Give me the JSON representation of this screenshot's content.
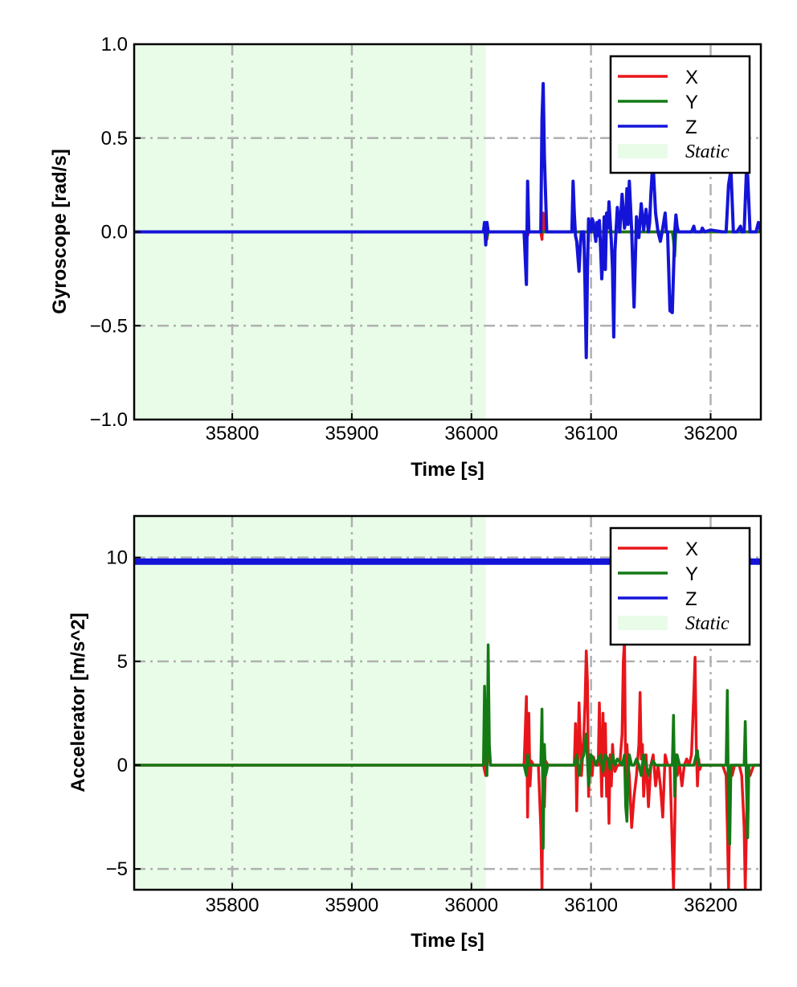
{
  "colors": {
    "X": "#e8161b",
    "Y": "#147a14",
    "Z": "#1414d8",
    "static_fill": "#e8fce8",
    "grid": "#b0b0b0"
  },
  "chart_data": [
    {
      "type": "line",
      "xlabel": "Time [s]",
      "ylabel": "Gyroscope [rad/s]",
      "xlim": [
        35718,
        36242
      ],
      "ylim": [
        -1.0,
        1.0
      ],
      "xticks": [
        35800,
        35900,
        36000,
        36100,
        36200
      ],
      "xtick_labels": [
        "35800",
        "35900",
        "36000",
        "36100",
        "36200"
      ],
      "yticks": [
        -1.0,
        -0.5,
        0.0,
        0.5,
        1.0
      ],
      "ytick_labels": [
        "−1.0",
        "−0.5",
        "0.0",
        "0.5",
        "1.0"
      ],
      "grid": true,
      "legend_position": "top-right",
      "static_region": [
        35718,
        36012
      ],
      "series": [
        {
          "name": "X",
          "color": "#e8161b",
          "x": [
            35718,
            36010,
            36012,
            36013,
            36014,
            36046,
            36047,
            36048,
            36058,
            36059,
            36060,
            36061,
            36062,
            36100,
            36242
          ],
          "y": [
            0.0,
            0.0,
            0.03,
            -0.04,
            0.0,
            0.0,
            -0.02,
            0.0,
            0.0,
            -0.04,
            0.1,
            0.0,
            0.0,
            0.0,
            0.0
          ]
        },
        {
          "name": "Y",
          "color": "#147a14",
          "x": [
            35718,
            36012,
            36013,
            36014,
            36168,
            36169,
            36170,
            36171,
            36242
          ],
          "y": [
            0.0,
            0.0,
            -0.03,
            0.0,
            0.0,
            -0.05,
            -0.13,
            0.0,
            0.0
          ]
        },
        {
          "name": "Z",
          "color": "#1414d8",
          "x": [
            35718,
            36010,
            36011,
            36012,
            36013,
            36014,
            36044,
            36046,
            36047,
            36048,
            36058,
            36059,
            36060,
            36061,
            36063,
            36084,
            36085,
            36086,
            36087,
            36088,
            36090,
            36091,
            36092,
            36094,
            36095,
            36096,
            36097,
            36098,
            36099,
            36100,
            36101,
            36102,
            36104,
            36105,
            36106,
            36107,
            36108,
            36109,
            36110,
            36111,
            36112,
            36113,
            36114,
            36115,
            36116,
            36117,
            36118,
            36119,
            36120,
            36122,
            36124,
            36126,
            36128,
            36129,
            36130,
            36131,
            36132,
            36134,
            36136,
            36138,
            36140,
            36142,
            36144,
            36146,
            36148,
            36149,
            36150,
            36151,
            36152,
            36154,
            36156,
            36158,
            36160,
            36162,
            36163,
            36164,
            36166,
            36168,
            36170,
            36171,
            36172,
            36173,
            36174,
            36176,
            36178,
            36180,
            36182,
            36184,
            36186,
            36187,
            36188,
            36189,
            36190,
            36192,
            36193,
            36195,
            36200,
            36210,
            36213,
            36215,
            36217,
            36219,
            36222,
            36225,
            36226,
            36228,
            36230,
            36231,
            36233,
            36236,
            36238,
            36240,
            36242
          ],
          "y": [
            0.0,
            0.0,
            0.05,
            -0.07,
            0.05,
            0.0,
            0.0,
            -0.28,
            0.27,
            0.0,
            0.0,
            0.6,
            0.79,
            0.4,
            0.0,
            0.0,
            0.27,
            0.1,
            -0.02,
            -0.05,
            -0.21,
            -0.08,
            0.0,
            0.0,
            -0.3,
            -0.67,
            -0.2,
            0.07,
            0.03,
            0.0,
            0.07,
            0.05,
            -0.05,
            0.05,
            -0.02,
            0.06,
            -0.08,
            -0.25,
            -0.12,
            0.08,
            -0.2,
            0.1,
            0.02,
            0.16,
            0.06,
            -0.05,
            -0.2,
            -0.56,
            -0.1,
            0.13,
            0.0,
            0.2,
            0.02,
            0.06,
            0.23,
            0.04,
            0.27,
            0.01,
            -0.4,
            0.08,
            -0.03,
            0.15,
            0.01,
            0.12,
            0.0,
            0.05,
            0.2,
            0.3,
            0.35,
            0.1,
            0.0,
            -0.05,
            0.02,
            0.1,
            0.0,
            0.0,
            -0.42,
            -0.43,
            0.0,
            0.09,
            0.03,
            0.0,
            0.0,
            0.0,
            0.0,
            0.0,
            0.0,
            0.0,
            0.03,
            0.0,
            0.0,
            0.0,
            0.0,
            0.0,
            0.02,
            0.0,
            0.01,
            0.0,
            0.0,
            0.25,
            0.33,
            0.0,
            0.0,
            0.03,
            0.0,
            0.0,
            0.33,
            0.3,
            0.0,
            0.0,
            0.0,
            0.05,
            0.0
          ]
        }
      ]
    },
    {
      "type": "line",
      "xlabel": "Time [s]",
      "ylabel": "Accelerator [m/s^2]",
      "xlim": [
        35718,
        36242
      ],
      "ylim": [
        -6.0,
        12.0
      ],
      "xticks": [
        35800,
        35900,
        36000,
        36100,
        36200
      ],
      "xtick_labels": [
        "35800",
        "35900",
        "36000",
        "36100",
        "36200"
      ],
      "yticks": [
        -5,
        0,
        5,
        10
      ],
      "ytick_labels": [
        "−5",
        "0",
        "5",
        "10"
      ],
      "grid": true,
      "legend_position": "top-right",
      "static_region": [
        35718,
        36012
      ],
      "series": [
        {
          "name": "X",
          "color": "#e8161b",
          "x": [
            35718,
            36010,
            36012,
            36013,
            36014,
            36016,
            36044,
            36046,
            36047,
            36048,
            36049,
            36050,
            36052,
            36056,
            36058,
            36059,
            36060,
            36061,
            36062,
            36064,
            36086,
            36087,
            36088,
            36089,
            36090,
            36092,
            36094,
            36095,
            36096,
            36097,
            36098,
            36099,
            36100,
            36101,
            36102,
            36104,
            36106,
            36107,
            36108,
            36109,
            36110,
            36111,
            36112,
            36113,
            36114,
            36115,
            36116,
            36117,
            36118,
            36119,
            36120,
            36122,
            36124,
            36126,
            36127,
            36128,
            36129,
            36130,
            36131,
            36132,
            36134,
            36136,
            36138,
            36140,
            36141,
            36142,
            36143,
            36144,
            36146,
            36148,
            36150,
            36152,
            36154,
            36156,
            36158,
            36160,
            36162,
            36164,
            36166,
            36168,
            36169,
            36170,
            36171,
            36172,
            36174,
            36176,
            36178,
            36180,
            36182,
            36184,
            36186,
            36187,
            36188,
            36189,
            36190,
            36191,
            36192,
            36194,
            36196,
            36200,
            36205,
            36210,
            36213,
            36214,
            36215,
            36216,
            36217,
            36218,
            36220,
            36224,
            36226,
            36228,
            36229,
            36230,
            36231,
            36233,
            36236,
            36240,
            36242
          ],
          "y": [
            0.0,
            0.0,
            -0.5,
            3.0,
            0.5,
            0.0,
            0.0,
            3.3,
            -2.5,
            2.5,
            -1.0,
            0.2,
            0.0,
            0.0,
            -3.0,
            -6.0,
            1.0,
            -2.0,
            0.2,
            0.0,
            0.0,
            2.0,
            -2.2,
            0.5,
            3.0,
            -0.5,
            1.5,
            3.0,
            5.5,
            4.0,
            -1.5,
            0.5,
            0.0,
            -0.5,
            0.4,
            0.0,
            0.0,
            3.0,
            0.5,
            -1.5,
            2.5,
            -0.5,
            2.0,
            -1.5,
            0.3,
            -2.8,
            0.5,
            -1.0,
            1.0,
            0.0,
            -0.3,
            0.0,
            0.0,
            1.5,
            5.0,
            6.0,
            -1.0,
            1.0,
            0.0,
            -0.5,
            -3.0,
            -1.5,
            -0.5,
            1.0,
            3.5,
            0.3,
            1.0,
            -1.5,
            0.5,
            -2.0,
            0.0,
            0.5,
            -1.0,
            0.0,
            -1.0,
            -2.5,
            0.5,
            0.0,
            0.0,
            -4.0,
            -6.0,
            -3.0,
            0.5,
            -0.5,
            0.0,
            -1.0,
            0.0,
            0.3,
            0.0,
            0.5,
            3.5,
            5.2,
            1.0,
            -1.0,
            0.3,
            -0.2,
            0.0,
            0.0,
            0.0,
            0.0,
            0.0,
            0.0,
            -0.5,
            -3.0,
            -6.0,
            -2.0,
            0.0,
            -0.5,
            0.0,
            0.0,
            -0.5,
            -3.0,
            -6.0,
            -3.0,
            0.0,
            -0.5,
            0.0,
            0.0,
            0.0
          ]
        },
        {
          "name": "Y",
          "color": "#147a14",
          "x": [
            35718,
            36010,
            36011,
            36012,
            36013,
            36014,
            36015,
            36016,
            36018,
            36044,
            36046,
            36047,
            36048,
            36050,
            36058,
            36059,
            36060,
            36061,
            36062,
            36064,
            36086,
            36088,
            36090,
            36092,
            36094,
            36096,
            36098,
            36100,
            36102,
            36104,
            36106,
            36108,
            36110,
            36112,
            36114,
            36116,
            36118,
            36120,
            36122,
            36126,
            36128,
            36129,
            36130,
            36131,
            36132,
            36134,
            36136,
            36138,
            36140,
            36142,
            36144,
            36146,
            36148,
            36150,
            36152,
            36154,
            36158,
            36166,
            36168,
            36169,
            36170,
            36171,
            36172,
            36174,
            36178,
            36186,
            36188,
            36189,
            36190,
            36192,
            36200,
            36210,
            36213,
            36214,
            36215,
            36216,
            36217,
            36219,
            36224,
            36228,
            36229,
            36230,
            36231,
            36232,
            36234,
            36236,
            36242
          ],
          "y": [
            0.0,
            0.0,
            3.8,
            1.0,
            -0.5,
            5.8,
            1.0,
            0.0,
            0.0,
            0.0,
            -0.5,
            0.5,
            0.0,
            0.0,
            0.0,
            2.7,
            -4.0,
            1.0,
            -0.5,
            0.0,
            0.0,
            0.5,
            -0.5,
            0.2,
            0.5,
            1.5,
            -1.0,
            0.5,
            0.3,
            0.0,
            0.3,
            0.5,
            -0.3,
            0.5,
            0.3,
            -0.2,
            0.5,
            0.0,
            0.3,
            0.0,
            0.5,
            -2.0,
            -2.7,
            -0.5,
            0.5,
            0.0,
            0.0,
            0.3,
            0.0,
            -0.5,
            0.5,
            0.0,
            -0.5,
            0.0,
            0.2,
            0.0,
            0.0,
            0.0,
            0.0,
            2.4,
            -1.5,
            0.0,
            0.5,
            0.0,
            0.0,
            0.0,
            0.5,
            0.7,
            0.0,
            0.0,
            0.0,
            0.0,
            0.0,
            3.6,
            -2.5,
            -3.8,
            0.0,
            0.0,
            0.0,
            0.0,
            2.1,
            -1.0,
            -3.5,
            0.0,
            0.0,
            0.0,
            0.0
          ]
        },
        {
          "name": "Z",
          "color": "#1414d8",
          "x": [
            35718,
            35800,
            35900,
            36000,
            36012,
            36100,
            36200,
            36242
          ],
          "y": [
            9.8,
            9.8,
            9.8,
            9.8,
            9.8,
            9.8,
            9.8,
            9.8
          ]
        }
      ]
    }
  ]
}
